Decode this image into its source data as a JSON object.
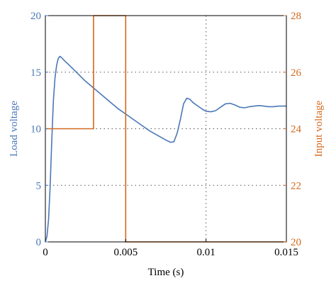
{
  "chart_data": {
    "type": "line",
    "xlabel": "Time (s)",
    "ylabel_left": "Load voltage",
    "ylabel_right": "Input voltage",
    "xlim": [
      0,
      0.015
    ],
    "ylim_left": [
      0,
      20
    ],
    "ylim_right": [
      20,
      28
    ],
    "x_ticks": [
      0,
      0.005,
      0.01,
      0.015
    ],
    "x_tick_labels": [
      "0",
      "0.005",
      "0.01",
      "0.015"
    ],
    "y_left_ticks": [
      0,
      5,
      10,
      15,
      20
    ],
    "y_left_tick_labels": [
      "0",
      "5",
      "10",
      "15",
      "20"
    ],
    "y_right_ticks": [
      20,
      22,
      24,
      26,
      28
    ],
    "y_right_tick_labels": [
      "20",
      "22",
      "24",
      "26",
      "28"
    ],
    "grid": "dotted",
    "colors": {
      "left_axis": "#4a78b8",
      "right_axis": "#d2691e",
      "grid": "#555555",
      "frame": "#000000"
    },
    "series": [
      {
        "axis": "left",
        "color": "#4a78b8",
        "x": [
          0,
          0.0001,
          0.0002,
          0.0003,
          0.0004,
          0.0005,
          0.0006,
          0.0007,
          0.0008,
          0.0009,
          0.001,
          0.0012,
          0.0015,
          0.002,
          0.0025,
          0.003,
          0.0035,
          0.004,
          0.0045,
          0.005,
          0.0055,
          0.006,
          0.0065,
          0.007,
          0.0075,
          0.0078,
          0.008,
          0.0082,
          0.0084,
          0.0086,
          0.0088,
          0.009,
          0.0092,
          0.0095,
          0.0098,
          0.01,
          0.0103,
          0.0106,
          0.0109,
          0.0112,
          0.0115,
          0.0118,
          0.0121,
          0.0124,
          0.0127,
          0.013,
          0.0133,
          0.0136,
          0.0139,
          0.0142,
          0.0145,
          0.0148,
          0.015
        ],
        "y": [
          0,
          0.5,
          2.0,
          5.0,
          9.0,
          12.5,
          14.5,
          15.6,
          16.2,
          16.4,
          16.3,
          16.0,
          15.6,
          14.9,
          14.2,
          13.6,
          13.0,
          12.4,
          11.8,
          11.3,
          10.8,
          10.3,
          9.8,
          9.4,
          9.0,
          8.8,
          8.85,
          9.6,
          10.8,
          12.2,
          12.7,
          12.6,
          12.3,
          12.0,
          11.7,
          11.55,
          11.5,
          11.6,
          11.9,
          12.2,
          12.25,
          12.1,
          11.9,
          11.85,
          11.95,
          12.0,
          12.05,
          12.0,
          11.95,
          11.95,
          12.0,
          12.0,
          12.0
        ]
      },
      {
        "axis": "right",
        "color": "#d2691e",
        "x": [
          0,
          0.003,
          0.003,
          0.005,
          0.005,
          0.015
        ],
        "y": [
          24,
          24,
          28,
          28,
          20,
          20
        ]
      }
    ]
  }
}
